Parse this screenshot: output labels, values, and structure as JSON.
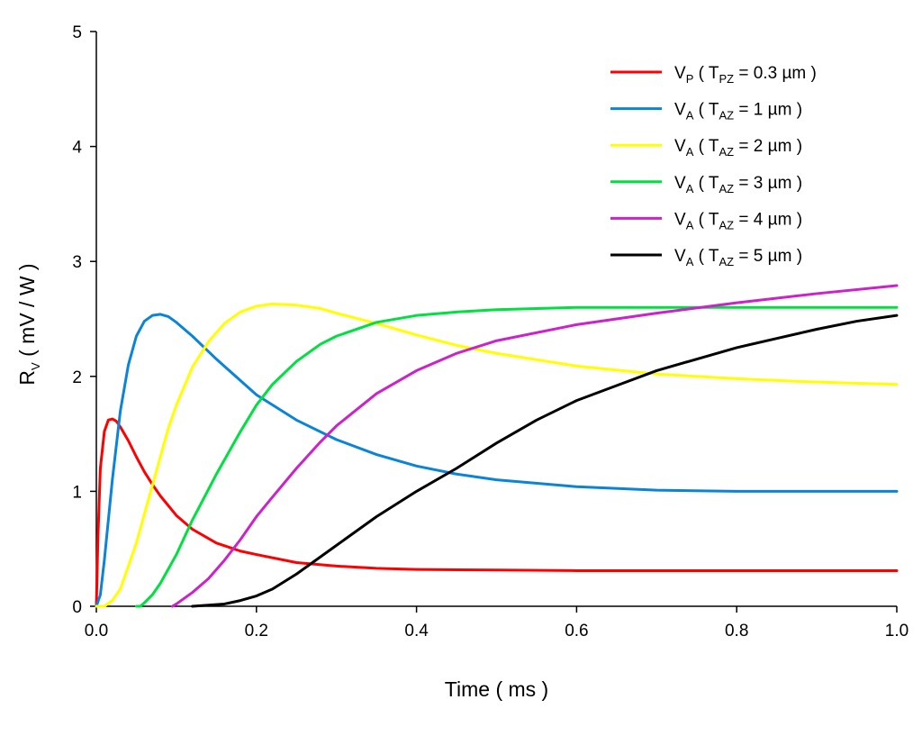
{
  "chart_data": {
    "type": "line",
    "title": "",
    "xlabel": "Time ( ms )",
    "ylabel_main": "R",
    "ylabel_sub": "V",
    "ylabel_rest": " ( mV / W )",
    "xlim": [
      0,
      1
    ],
    "ylim": [
      0,
      5
    ],
    "xticks": [
      "0.0",
      "0.2",
      "0.4",
      "0.6",
      "0.8",
      "1.0"
    ],
    "xtick_values": [
      0,
      0.2,
      0.4,
      0.6,
      0.8,
      1.0
    ],
    "yticks": [
      "0",
      "1",
      "2",
      "3",
      "4",
      "5"
    ],
    "ytick_values": [
      0,
      1,
      2,
      3,
      4,
      5
    ],
    "grid": false,
    "legend_position": "top-right",
    "series": [
      {
        "name": "V_P ( T_PZ = 0.3 µm )",
        "label_main": "V",
        "label_sub": "P",
        "label_mid": " ( T",
        "label_sub2": "PZ",
        "label_end": " = 0.3 µm )",
        "color": "#ff0000",
        "x": [
          0,
          0.002,
          0.005,
          0.01,
          0.015,
          0.02,
          0.025,
          0.03,
          0.04,
          0.05,
          0.06,
          0.07,
          0.08,
          0.1,
          0.12,
          0.15,
          0.18,
          0.2,
          0.25,
          0.3,
          0.35,
          0.4,
          0.5,
          0.6,
          0.7,
          0.8,
          0.9,
          1.0
        ],
        "y": [
          0,
          0.6,
          1.2,
          1.52,
          1.62,
          1.63,
          1.61,
          1.56,
          1.44,
          1.3,
          1.17,
          1.06,
          0.96,
          0.79,
          0.67,
          0.55,
          0.48,
          0.45,
          0.38,
          0.35,
          0.33,
          0.32,
          0.315,
          0.31,
          0.31,
          0.31,
          0.31,
          0.31
        ]
      },
      {
        "name": "V_A ( T_AZ = 1 µm )",
        "label_main": "V",
        "label_sub": "A",
        "label_mid": " ( T",
        "label_sub2": "AZ",
        "label_end": " = 1 µm )",
        "color": "#0a84d8",
        "x": [
          0,
          0.005,
          0.01,
          0.02,
          0.03,
          0.04,
          0.05,
          0.06,
          0.07,
          0.08,
          0.09,
          0.1,
          0.12,
          0.15,
          0.2,
          0.25,
          0.3,
          0.35,
          0.4,
          0.45,
          0.5,
          0.6,
          0.7,
          0.8,
          0.9,
          1.0
        ],
        "y": [
          0,
          0.1,
          0.4,
          1.1,
          1.7,
          2.1,
          2.35,
          2.48,
          2.53,
          2.54,
          2.52,
          2.47,
          2.35,
          2.15,
          1.84,
          1.62,
          1.45,
          1.32,
          1.22,
          1.15,
          1.1,
          1.04,
          1.01,
          1.0,
          1.0,
          1.0
        ]
      },
      {
        "name": "V_A ( T_AZ = 2 µm )",
        "label_main": "V",
        "label_sub": "A",
        "label_mid": " ( T",
        "label_sub2": "AZ",
        "label_end": " = 2 µm )",
        "color": "#ffff00",
        "x": [
          0,
          0.01,
          0.02,
          0.03,
          0.05,
          0.07,
          0.09,
          0.1,
          0.12,
          0.14,
          0.16,
          0.18,
          0.2,
          0.22,
          0.25,
          0.28,
          0.3,
          0.35,
          0.4,
          0.45,
          0.5,
          0.6,
          0.7,
          0.8,
          0.9,
          1.0
        ],
        "y": [
          0,
          0.0,
          0.05,
          0.15,
          0.55,
          1.05,
          1.55,
          1.75,
          2.08,
          2.3,
          2.46,
          2.56,
          2.61,
          2.63,
          2.62,
          2.59,
          2.55,
          2.46,
          2.36,
          2.27,
          2.2,
          2.09,
          2.02,
          1.98,
          1.95,
          1.93
        ]
      },
      {
        "name": "V_A ( T_AZ = 3 µm )",
        "label_main": "V",
        "label_sub": "A",
        "label_mid": " ( T",
        "label_sub2": "AZ",
        "label_end": " = 3 µm )",
        "color": "#00e040",
        "x": [
          0.05,
          0.055,
          0.06,
          0.07,
          0.08,
          0.1,
          0.12,
          0.15,
          0.18,
          0.2,
          0.22,
          0.25,
          0.28,
          0.3,
          0.35,
          0.4,
          0.45,
          0.5,
          0.6,
          0.7,
          0.8,
          0.9,
          1.0
        ],
        "y": [
          0,
          0.0,
          0.03,
          0.1,
          0.2,
          0.45,
          0.75,
          1.15,
          1.52,
          1.75,
          1.93,
          2.13,
          2.28,
          2.35,
          2.47,
          2.53,
          2.56,
          2.58,
          2.6,
          2.6,
          2.6,
          2.6,
          2.6
        ]
      },
      {
        "name": "V_A ( T_AZ = 4 µm )",
        "label_main": "V",
        "label_sub": "A",
        "label_mid": " ( T",
        "label_sub2": "AZ",
        "label_end": " = 4 µm )",
        "color": "#cc22cc",
        "x": [
          0.095,
          0.1,
          0.11,
          0.12,
          0.14,
          0.16,
          0.18,
          0.2,
          0.22,
          0.25,
          0.28,
          0.3,
          0.35,
          0.4,
          0.45,
          0.5,
          0.6,
          0.7,
          0.8,
          0.9,
          1.0
        ],
        "y": [
          0,
          0.02,
          0.07,
          0.12,
          0.24,
          0.4,
          0.58,
          0.78,
          0.95,
          1.2,
          1.43,
          1.57,
          1.85,
          2.05,
          2.2,
          2.31,
          2.45,
          2.55,
          2.64,
          2.72,
          2.79
        ]
      },
      {
        "name": "V_A ( T_AZ = 5 µm )",
        "label_main": "V",
        "label_sub": "A",
        "label_mid": " ( T",
        "label_sub2": "AZ",
        "label_end": " = 5 µm )",
        "color": "#000000",
        "x": [
          0.12,
          0.14,
          0.16,
          0.18,
          0.2,
          0.22,
          0.25,
          0.28,
          0.3,
          0.35,
          0.4,
          0.45,
          0.5,
          0.55,
          0.6,
          0.65,
          0.7,
          0.75,
          0.8,
          0.85,
          0.9,
          0.95,
          1.0
        ],
        "y": [
          0,
          0.01,
          0.02,
          0.05,
          0.09,
          0.15,
          0.28,
          0.43,
          0.53,
          0.78,
          1.0,
          1.2,
          1.42,
          1.62,
          1.79,
          1.92,
          2.05,
          2.15,
          2.25,
          2.33,
          2.41,
          2.48,
          2.53
        ]
      }
    ]
  }
}
